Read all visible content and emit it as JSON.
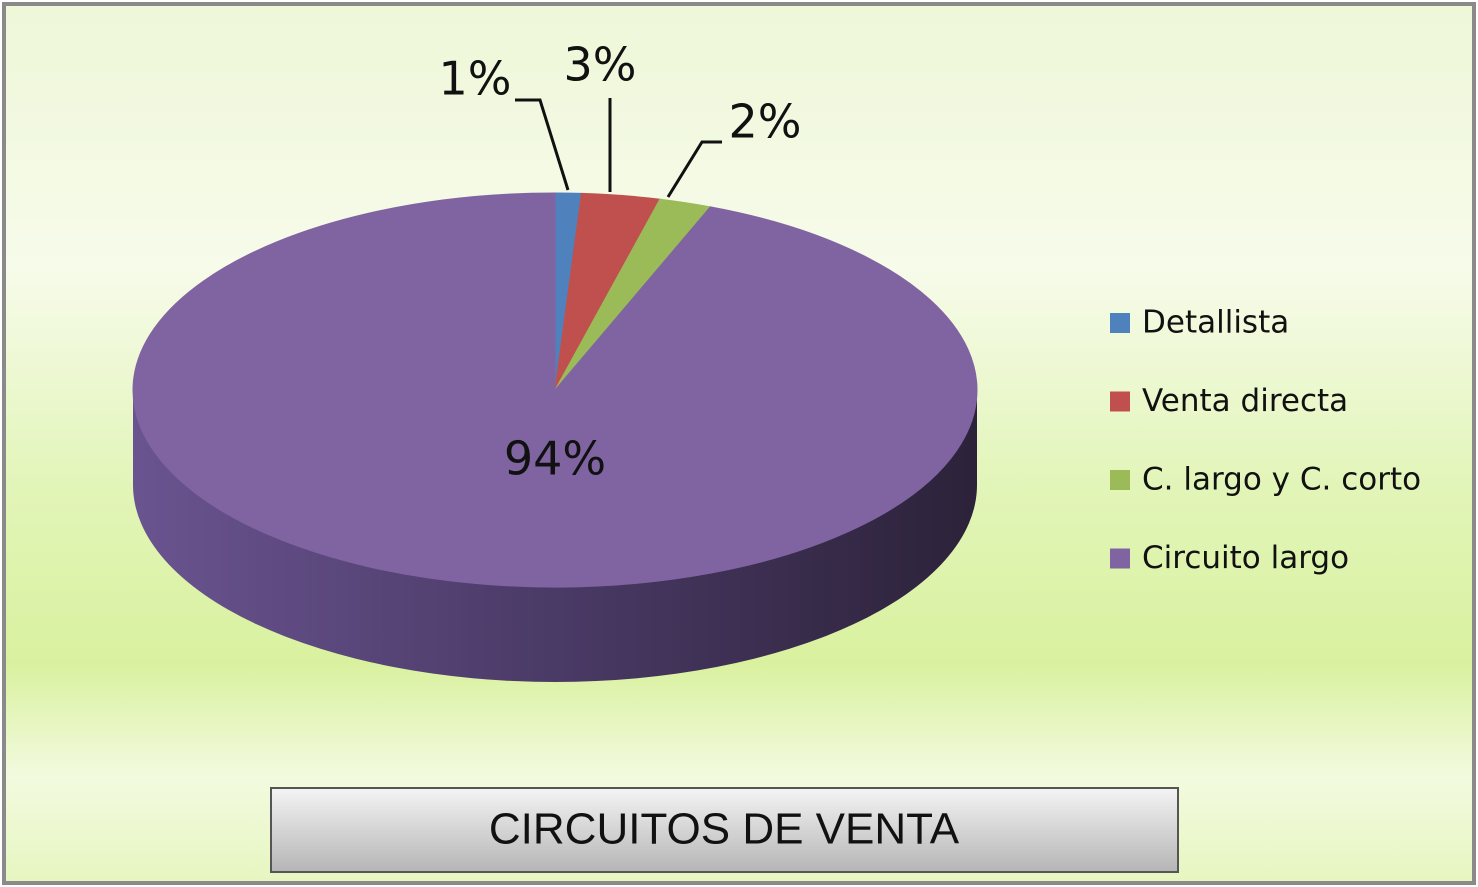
{
  "chart_data": {
    "type": "pie",
    "title": "CIRCUITOS DE VENTA",
    "categories": [
      "Detallista",
      "Venta directa",
      "C. largo y C. corto",
      "Circuito largo"
    ],
    "values": [
      1,
      3,
      2,
      94
    ],
    "value_labels": [
      "1%",
      "3%",
      "2%",
      "94%"
    ],
    "colors": [
      "#4f81bd",
      "#c0504d",
      "#9bbb59",
      "#8064a2"
    ],
    "legend": "right"
  }
}
